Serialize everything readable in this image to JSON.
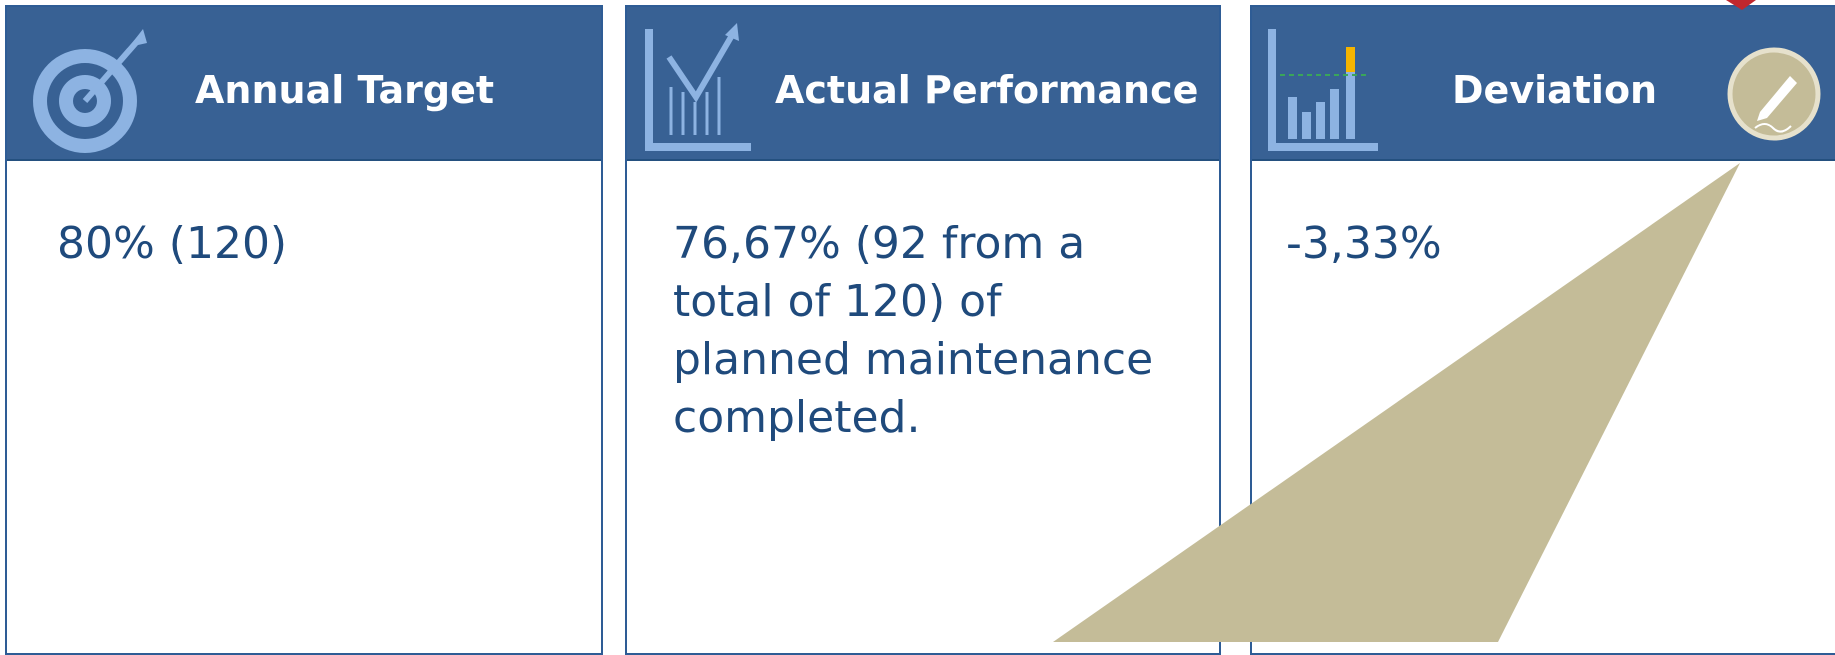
{
  "cards": [
    {
      "title": "Annual Target",
      "body": "80% (120)"
    },
    {
      "title": "Actual Performance",
      "body": "76,67% (92 from a total of 120) of planned maintenance completed."
    },
    {
      "title": "Deviation",
      "body": "-3,33%"
    }
  ]
}
